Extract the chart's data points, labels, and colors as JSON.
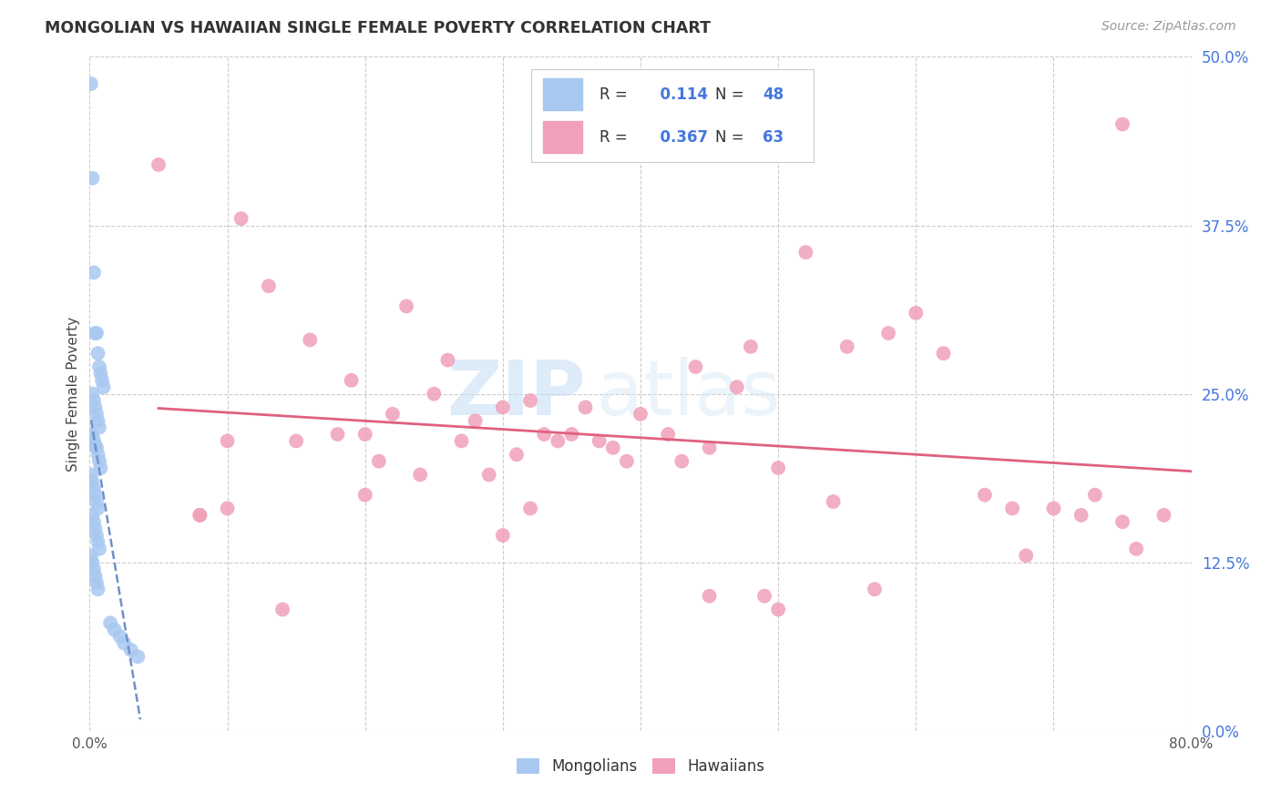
{
  "title": "MONGOLIAN VS HAWAIIAN SINGLE FEMALE POVERTY CORRELATION CHART",
  "source": "Source: ZipAtlas.com",
  "ylabel": "Single Female Poverty",
  "watermark_zip": "ZIP",
  "watermark_atlas": "atlas",
  "mongolian_color": "#a8c8f0",
  "hawaiian_color": "#f0a0b8",
  "mongolian_trend_color": "#7090c8",
  "hawaiian_trend_color": "#e06080",
  "background_color": "#ffffff",
  "grid_color": "#cccccc",
  "R_mongolian": 0.114,
  "N_mongolian": 48,
  "R_hawaiian": 0.367,
  "N_hawaiian": 63,
  "xlim": [
    0.0,
    0.8
  ],
  "ylim": [
    0.0,
    0.5
  ],
  "ytick_values": [
    0.0,
    0.125,
    0.25,
    0.375,
    0.5
  ],
  "ytick_right_labels": [
    "0.0%",
    "12.5%",
    "25.0%",
    "37.5%",
    "50.0%"
  ],
  "xtick_values": [
    0.0,
    0.1,
    0.2,
    0.3,
    0.4,
    0.5,
    0.6,
    0.7,
    0.8
  ],
  "xtick_labels": [
    "0.0%",
    "",
    "",
    "",
    "",
    "",
    "",
    "",
    "80.0%"
  ],
  "mongolian_x": [
    0.001,
    0.002,
    0.003,
    0.004,
    0.005,
    0.006,
    0.007,
    0.008,
    0.009,
    0.01,
    0.002,
    0.003,
    0.004,
    0.005,
    0.006,
    0.007,
    0.001,
    0.002,
    0.003,
    0.004,
    0.005,
    0.006,
    0.007,
    0.008,
    0.001,
    0.002,
    0.003,
    0.004,
    0.005,
    0.006,
    0.002,
    0.003,
    0.004,
    0.005,
    0.006,
    0.007,
    0.001,
    0.002,
    0.003,
    0.004,
    0.005,
    0.006,
    0.015,
    0.018,
    0.022,
    0.025,
    0.03,
    0.035
  ],
  "mongolian_y": [
    0.48,
    0.41,
    0.34,
    0.295,
    0.295,
    0.28,
    0.27,
    0.265,
    0.26,
    0.255,
    0.25,
    0.245,
    0.24,
    0.235,
    0.23,
    0.225,
    0.22,
    0.218,
    0.215,
    0.212,
    0.21,
    0.205,
    0.2,
    0.195,
    0.19,
    0.185,
    0.18,
    0.175,
    0.17,
    0.165,
    0.16,
    0.155,
    0.15,
    0.145,
    0.14,
    0.135,
    0.13,
    0.125,
    0.12,
    0.115,
    0.11,
    0.105,
    0.08,
    0.075,
    0.07,
    0.065,
    0.06,
    0.055
  ],
  "hawaiian_x": [
    0.05,
    0.08,
    0.1,
    0.11,
    0.13,
    0.14,
    0.15,
    0.16,
    0.18,
    0.19,
    0.2,
    0.21,
    0.22,
    0.23,
    0.24,
    0.25,
    0.26,
    0.27,
    0.28,
    0.29,
    0.3,
    0.31,
    0.32,
    0.33,
    0.34,
    0.35,
    0.36,
    0.37,
    0.38,
    0.39,
    0.4,
    0.42,
    0.43,
    0.44,
    0.45,
    0.47,
    0.48,
    0.49,
    0.5,
    0.52,
    0.54,
    0.55,
    0.57,
    0.58,
    0.6,
    0.62,
    0.65,
    0.67,
    0.68,
    0.7,
    0.72,
    0.73,
    0.75,
    0.76,
    0.78,
    0.45,
    0.5,
    0.32,
    0.08,
    0.3,
    0.2,
    0.1,
    0.75
  ],
  "hawaiian_y": [
    0.42,
    0.16,
    0.215,
    0.38,
    0.33,
    0.09,
    0.215,
    0.29,
    0.22,
    0.26,
    0.22,
    0.2,
    0.235,
    0.315,
    0.19,
    0.25,
    0.275,
    0.215,
    0.23,
    0.19,
    0.24,
    0.205,
    0.245,
    0.22,
    0.215,
    0.22,
    0.24,
    0.215,
    0.21,
    0.2,
    0.235,
    0.22,
    0.2,
    0.27,
    0.21,
    0.255,
    0.285,
    0.1,
    0.195,
    0.355,
    0.17,
    0.285,
    0.105,
    0.295,
    0.31,
    0.28,
    0.175,
    0.165,
    0.13,
    0.165,
    0.16,
    0.175,
    0.155,
    0.135,
    0.16,
    0.1,
    0.09,
    0.165,
    0.16,
    0.145,
    0.175,
    0.165,
    0.45
  ]
}
